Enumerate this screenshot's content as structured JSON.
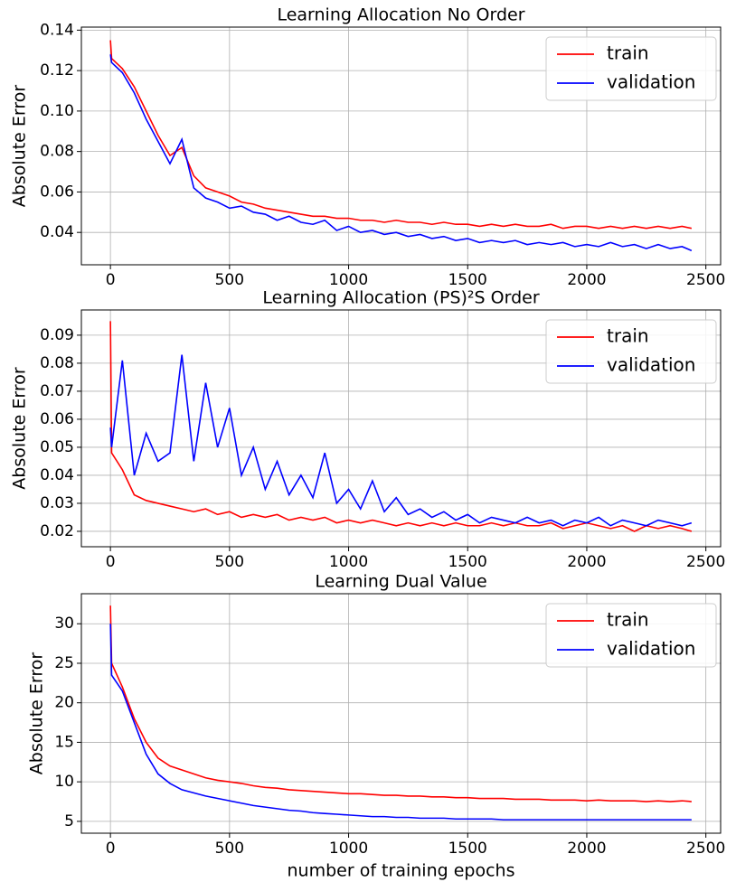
{
  "chart_data": [
    {
      "type": "line",
      "title": "Learning Allocation No Order",
      "ylabel": "Absolute Error",
      "x": [
        0,
        5,
        50,
        100,
        150,
        200,
        250,
        300,
        350,
        400,
        450,
        500,
        550,
        600,
        650,
        700,
        750,
        800,
        850,
        900,
        950,
        1000,
        1050,
        1100,
        1150,
        1200,
        1250,
        1300,
        1350,
        1400,
        1450,
        1500,
        1550,
        1600,
        1650,
        1700,
        1750,
        1800,
        1850,
        1900,
        1950,
        2000,
        2050,
        2100,
        2150,
        2200,
        2250,
        2300,
        2350,
        2400,
        2440
      ],
      "series": [
        {
          "name": "train",
          "color": "#ff0000",
          "values": [
            0.135,
            0.126,
            0.121,
            0.112,
            0.1,
            0.088,
            0.078,
            0.082,
            0.068,
            0.062,
            0.06,
            0.058,
            0.055,
            0.054,
            0.052,
            0.051,
            0.05,
            0.049,
            0.048,
            0.048,
            0.047,
            0.047,
            0.046,
            0.046,
            0.045,
            0.046,
            0.045,
            0.045,
            0.044,
            0.045,
            0.044,
            0.044,
            0.043,
            0.044,
            0.043,
            0.044,
            0.043,
            0.043,
            0.044,
            0.042,
            0.043,
            0.043,
            0.042,
            0.043,
            0.042,
            0.043,
            0.042,
            0.043,
            0.042,
            0.043,
            0.042
          ]
        },
        {
          "name": "validation",
          "color": "#0000ff",
          "values": [
            0.128,
            0.124,
            0.119,
            0.109,
            0.096,
            0.085,
            0.074,
            0.086,
            0.062,
            0.057,
            0.055,
            0.052,
            0.053,
            0.05,
            0.049,
            0.046,
            0.048,
            0.045,
            0.044,
            0.046,
            0.041,
            0.043,
            0.04,
            0.041,
            0.039,
            0.04,
            0.038,
            0.039,
            0.037,
            0.038,
            0.036,
            0.037,
            0.035,
            0.036,
            0.035,
            0.036,
            0.034,
            0.035,
            0.034,
            0.035,
            0.033,
            0.034,
            0.033,
            0.035,
            0.033,
            0.034,
            0.032,
            0.034,
            0.032,
            0.033,
            0.031
          ]
        }
      ],
      "xlim": [
        -122,
        2562
      ],
      "ylim": [
        0.024,
        0.1415
      ],
      "xticks": [
        0,
        500,
        1000,
        1500,
        2000,
        2500
      ],
      "yticks": [
        0.04,
        0.06,
        0.08,
        {
          "value": 0.1,
          "label": "0.10"
        },
        0.12,
        0.14
      ],
      "grid": true,
      "legend": "upper right"
    },
    {
      "type": "line",
      "title": "Learning Allocation (PS)²S Order",
      "ylabel": "Absolute Error",
      "x": [
        0,
        5,
        50,
        100,
        150,
        200,
        250,
        300,
        350,
        400,
        450,
        500,
        550,
        600,
        650,
        700,
        750,
        800,
        850,
        900,
        950,
        1000,
        1050,
        1100,
        1150,
        1200,
        1250,
        1300,
        1350,
        1400,
        1450,
        1500,
        1550,
        1600,
        1650,
        1700,
        1750,
        1800,
        1850,
        1900,
        1950,
        2000,
        2050,
        2100,
        2150,
        2200,
        2250,
        2300,
        2350,
        2400,
        2440
      ],
      "series": [
        {
          "name": "train",
          "color": "#ff0000",
          "values": [
            0.095,
            0.048,
            0.042,
            0.033,
            0.031,
            0.03,
            0.029,
            0.028,
            0.027,
            0.028,
            0.026,
            0.027,
            0.025,
            0.026,
            0.025,
            0.026,
            0.024,
            0.025,
            0.024,
            0.025,
            0.023,
            0.024,
            0.023,
            0.024,
            0.023,
            0.022,
            0.023,
            0.022,
            0.023,
            0.022,
            0.023,
            0.022,
            0.022,
            0.023,
            0.022,
            0.023,
            0.022,
            0.022,
            0.023,
            0.021,
            0.022,
            0.023,
            0.022,
            0.021,
            0.022,
            0.02,
            0.022,
            0.021,
            0.022,
            0.021,
            0.02
          ]
        },
        {
          "name": "validation",
          "color": "#0000ff",
          "values": [
            0.057,
            0.05,
            0.081,
            0.04,
            0.055,
            0.045,
            0.048,
            0.083,
            0.045,
            0.073,
            0.05,
            0.064,
            0.04,
            0.05,
            0.035,
            0.045,
            0.033,
            0.04,
            0.032,
            0.048,
            0.03,
            0.035,
            0.028,
            0.038,
            0.027,
            0.032,
            0.026,
            0.028,
            0.025,
            0.027,
            0.024,
            0.026,
            0.023,
            0.025,
            0.024,
            0.023,
            0.025,
            0.023,
            0.024,
            0.022,
            0.024,
            0.023,
            0.025,
            0.022,
            0.024,
            0.023,
            0.022,
            0.024,
            0.023,
            0.022,
            0.023
          ]
        }
      ],
      "xlim": [
        -122,
        2562
      ],
      "ylim": [
        0.0145,
        0.099
      ],
      "xticks": [
        0,
        500,
        1000,
        1500,
        2000,
        2500
      ],
      "yticks": [
        0.02,
        0.03,
        0.04,
        0.05,
        0.06,
        0.07,
        0.08,
        0.09
      ],
      "grid": true,
      "legend": "upper right"
    },
    {
      "type": "line",
      "title": "Learning Dual Value",
      "ylabel": "Absolute Error",
      "xlabel": "number of training epochs",
      "x": [
        0,
        5,
        50,
        100,
        150,
        200,
        250,
        300,
        350,
        400,
        450,
        500,
        550,
        600,
        650,
        700,
        750,
        800,
        850,
        900,
        950,
        1000,
        1050,
        1100,
        1150,
        1200,
        1250,
        1300,
        1350,
        1400,
        1450,
        1500,
        1550,
        1600,
        1650,
        1700,
        1750,
        1800,
        1850,
        1900,
        1950,
        2000,
        2050,
        2100,
        2150,
        2200,
        2250,
        2300,
        2350,
        2400,
        2440
      ],
      "series": [
        {
          "name": "train",
          "color": "#ff0000",
          "values": [
            32.3,
            25,
            22,
            18,
            15,
            13,
            12,
            11.5,
            11,
            10.5,
            10.2,
            10,
            9.8,
            9.5,
            9.3,
            9.2,
            9.0,
            8.9,
            8.8,
            8.7,
            8.6,
            8.5,
            8.5,
            8.4,
            8.3,
            8.3,
            8.2,
            8.2,
            8.1,
            8.1,
            8.0,
            8.0,
            7.9,
            7.9,
            7.9,
            7.8,
            7.8,
            7.8,
            7.7,
            7.7,
            7.7,
            7.6,
            7.7,
            7.6,
            7.6,
            7.6,
            7.5,
            7.6,
            7.5,
            7.6,
            7.5
          ]
        },
        {
          "name": "validation",
          "color": "#0000ff",
          "values": [
            30,
            23.5,
            21.5,
            17.5,
            13.5,
            11,
            9.8,
            9,
            8.6,
            8.2,
            7.9,
            7.6,
            7.3,
            7.0,
            6.8,
            6.6,
            6.4,
            6.3,
            6.1,
            6.0,
            5.9,
            5.8,
            5.7,
            5.6,
            5.6,
            5.5,
            5.5,
            5.4,
            5.4,
            5.4,
            5.3,
            5.3,
            5.3,
            5.3,
            5.2,
            5.2,
            5.2,
            5.2,
            5.2,
            5.2,
            5.2,
            5.2,
            5.2,
            5.2,
            5.2,
            5.2,
            5.2,
            5.2,
            5.2,
            5.2,
            5.2
          ]
        }
      ],
      "xlim": [
        -122,
        2562
      ],
      "ylim": [
        3.5,
        33.8
      ],
      "xticks": [
        0,
        500,
        1000,
        1500,
        2000,
        2500
      ],
      "yticks": [
        5,
        10,
        15,
        20,
        25,
        30
      ],
      "grid": true,
      "legend": "upper right"
    }
  ]
}
